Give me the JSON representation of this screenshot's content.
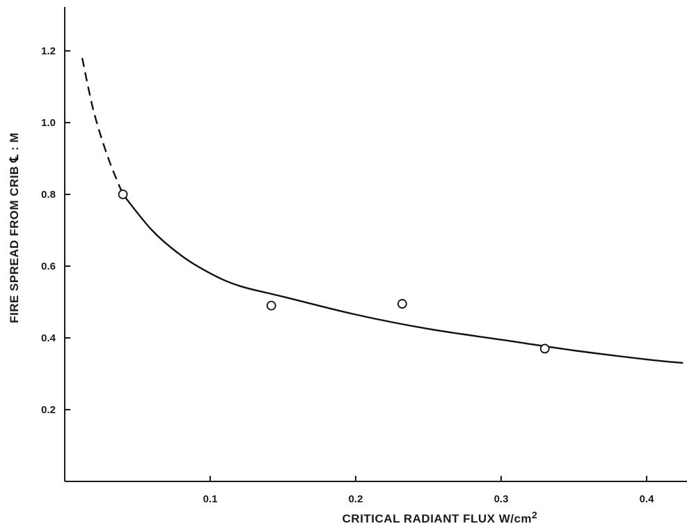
{
  "chart_data": {
    "type": "scatter",
    "title": "",
    "xlabel": "CRITICAL RADIANT FLUX  W/cm",
    "xlabel_superscript": "2",
    "ylabel": "FIRE SPREAD FROM CRIB ℄ : M",
    "xlim": [
      0.0,
      0.425
    ],
    "ylim": [
      0.0,
      1.3
    ],
    "x_ticks": [
      "0.1",
      "0.2",
      "0.3",
      "0.4"
    ],
    "x_tick_values": [
      0.1,
      0.2,
      0.3,
      0.4
    ],
    "y_ticks": [
      "0.2",
      "0.4",
      "0.6",
      "0.8",
      "1.0",
      "1.2"
    ],
    "y_tick_values": [
      0.2,
      0.4,
      0.6,
      0.8,
      1.0,
      1.2
    ],
    "grid": false,
    "series": [
      {
        "kind": "points",
        "marker": "open-circle",
        "x": [
          0.04,
          0.142,
          0.232,
          0.33
        ],
        "y": [
          0.8,
          0.49,
          0.495,
          0.37
        ]
      },
      {
        "kind": "fitted-curve",
        "dashed_segment": {
          "x": [
            0.012,
            0.02,
            0.03,
            0.04
          ],
          "y": [
            1.18,
            1.03,
            0.9,
            0.8
          ]
        },
        "solid_segment": {
          "x": [
            0.04,
            0.06,
            0.08,
            0.1,
            0.12,
            0.15,
            0.2,
            0.25,
            0.3,
            0.35,
            0.4,
            0.425
          ],
          "y": [
            0.8,
            0.7,
            0.63,
            0.58,
            0.545,
            0.515,
            0.465,
            0.425,
            0.395,
            0.365,
            0.34,
            0.33
          ]
        }
      }
    ]
  }
}
